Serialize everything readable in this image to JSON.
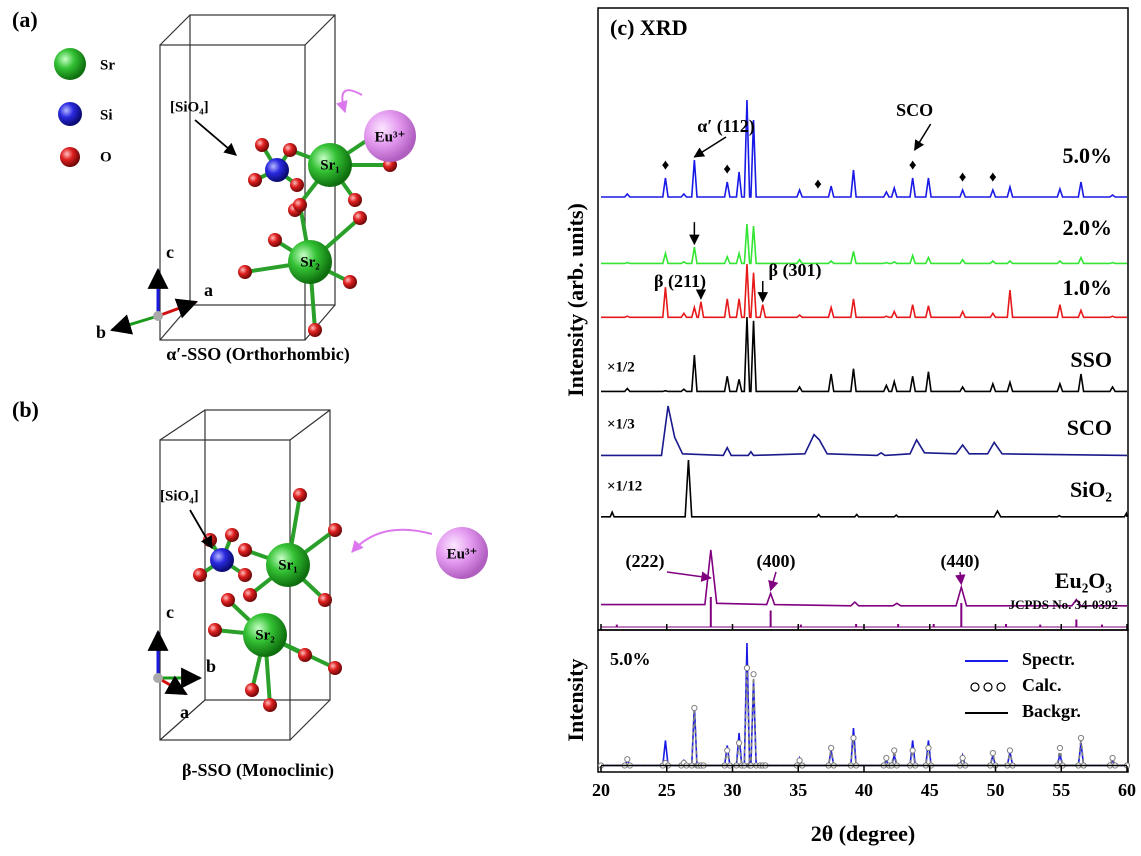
{
  "panels": [
    {
      "label": "(a)",
      "legend": [
        "Sr",
        "Si",
        "O"
      ],
      "group": "[SiO₄]",
      "dopant": "Eu³⁺",
      "atoms": [
        "Sr₁",
        "Sr₂"
      ],
      "axes": [
        "c",
        "b",
        "a"
      ],
      "caption": "α′-SSO (Orthorhombic)"
    },
    {
      "label": "(b)",
      "group": "[SiO₄]",
      "dopant": "Eu³⁺",
      "atoms": [
        "Sr₁",
        "Sr₂"
      ],
      "axes": [
        "c",
        "b",
        "a"
      ],
      "caption": "β-SSO (Monoclinic)"
    }
  ],
  "chart_data": [
    {
      "type": "line",
      "title": "(c) XRD",
      "y_label": "Intensity (arb. units)",
      "xlim": [
        20,
        60
      ],
      "x": [
        20,
        21.8,
        22,
        22.2,
        24.7,
        24.9,
        25.1,
        26.1,
        26.3,
        26.5,
        26.9,
        27.1,
        27.3,
        27.4,
        27.6,
        27.8,
        29.4,
        29.6,
        29.8,
        30.3,
        30.5,
        30.7,
        30.9,
        31.1,
        31.3,
        31.4,
        31.6,
        31.8,
        32.1,
        32.3,
        32.5,
        34.9,
        35.1,
        35.3,
        37.3,
        37.5,
        37.7,
        39,
        39.2,
        39.4,
        41.5,
        41.7,
        41.9,
        42.1,
        42.3,
        42.5,
        43.5,
        43.7,
        43.9,
        44.7,
        44.9,
        45.1,
        47.3,
        47.5,
        47.7,
        49.6,
        49.8,
        50,
        50.9,
        51.1,
        51.3,
        54.7,
        54.9,
        55.1,
        56.3,
        56.5,
        56.7,
        58.7,
        58.9,
        59.1,
        60
      ],
      "series": [
        {
          "name": "5.0%",
          "color": "#1a1ae6",
          "values": [
            3,
            3,
            6,
            3,
            3,
            22,
            3,
            3,
            6,
            3,
            3,
            40,
            3,
            3,
            3,
            3,
            3,
            18,
            3,
            3,
            28,
            3,
            3,
            100,
            3,
            3,
            80,
            3,
            3,
            3,
            3,
            3,
            10,
            3,
            3,
            14,
            3,
            3,
            30,
            3,
            3,
            8,
            3,
            3,
            12,
            3,
            3,
            22,
            3,
            3,
            22,
            3,
            3,
            10,
            3,
            3,
            10,
            3,
            3,
            13,
            3,
            3,
            11,
            3,
            3,
            18,
            3,
            3,
            5,
            3,
            3
          ]
        },
        {
          "name": "2.0%",
          "color": "#33e633",
          "values": [
            6,
            6,
            8,
            6,
            6,
            30,
            6,
            6,
            10,
            6,
            6,
            45,
            6,
            6,
            6,
            6,
            6,
            22,
            6,
            6,
            30,
            6,
            6,
            100,
            6,
            6,
            95,
            6,
            6,
            6,
            6,
            6,
            15,
            6,
            6,
            12,
            6,
            6,
            35,
            6,
            6,
            8,
            6,
            6,
            10,
            6,
            6,
            25,
            6,
            6,
            20,
            6,
            6,
            15,
            6,
            6,
            12,
            6,
            6,
            12,
            6,
            6,
            12,
            6,
            6,
            20,
            6,
            6,
            8,
            6,
            6
          ]
        },
        {
          "name": "1.0%",
          "color": "#e61a1a",
          "values": [
            8,
            8,
            10,
            8,
            8,
            60,
            8,
            8,
            15,
            8,
            8,
            25,
            8,
            8,
            35,
            8,
            8,
            40,
            8,
            8,
            40,
            8,
            8,
            100,
            8,
            8,
            85,
            8,
            8,
            30,
            8,
            8,
            12,
            8,
            8,
            25,
            8,
            8,
            40,
            8,
            8,
            10,
            8,
            8,
            18,
            8,
            8,
            30,
            8,
            8,
            28,
            8,
            8,
            18,
            8,
            8,
            15,
            8,
            8,
            55,
            8,
            8,
            30,
            8,
            8,
            20,
            8,
            8,
            10,
            8,
            8
          ]
        },
        {
          "name": "SSO",
          "color": "#000000",
          "scale_label": "×1/2",
          "values": [
            2,
            2,
            6,
            2,
            2,
            3,
            2,
            2,
            5,
            2,
            2,
            50,
            2,
            2,
            2,
            2,
            2,
            22,
            2,
            2,
            18,
            2,
            2,
            100,
            2,
            2,
            95,
            2,
            2,
            2,
            2,
            2,
            8,
            2,
            2,
            25,
            2,
            2,
            32,
            2,
            2,
            10,
            2,
            2,
            15,
            2,
            2,
            22,
            2,
            2,
            28,
            2,
            2,
            8,
            2,
            2,
            12,
            2,
            2,
            14,
            2,
            2,
            12,
            2,
            2,
            25,
            2,
            2,
            8,
            2,
            2
          ]
        },
        {
          "name": "SCO",
          "color": "#1a1a8c",
          "scale_label": "×1/3",
          "x": [
            20,
            24.6,
            25.1,
            25.6,
            26.2,
            29.3,
            29.6,
            29.9,
            31.2,
            31.4,
            31.6,
            35.5,
            36.2,
            36.6,
            37.2,
            41,
            41.3,
            41.6,
            43.5,
            44,
            44.6,
            47,
            47.5,
            48,
            49.4,
            49.9,
            50.5,
            60
          ],
          "values": [
            5,
            5,
            100,
            40,
            8,
            5,
            20,
            5,
            5,
            12,
            5,
            8,
            45,
            35,
            8,
            5,
            10,
            5,
            8,
            35,
            10,
            8,
            25,
            8,
            8,
            30,
            8,
            5
          ]
        },
        {
          "name": "SiO₂",
          "color": "#000000",
          "scale_label": "×1/12",
          "x": [
            20,
            20.7,
            20.85,
            21,
            26.4,
            26.65,
            26.9,
            36.4,
            36.55,
            36.7,
            39.3,
            39.45,
            39.6,
            42.3,
            42.45,
            42.6,
            49.9,
            50.15,
            50.4,
            54.7,
            54.85,
            55,
            59.8,
            59.95,
            60
          ],
          "values": [
            2,
            2,
            10,
            2,
            2,
            100,
            2,
            2,
            6,
            2,
            2,
            6,
            2,
            2,
            5,
            2,
            2,
            12,
            2,
            2,
            4,
            2,
            2,
            8,
            2
          ]
        },
        {
          "name": "Eu₂O₃",
          "color": "#800080",
          "x": [
            20,
            27.9,
            28.35,
            28.8,
            32.6,
            32.9,
            33.2,
            39,
            39.3,
            39.6,
            42.2,
            42.5,
            42.8,
            47,
            47.4,
            47.8,
            55.8,
            56.15,
            56.5,
            60
          ],
          "values": [
            12,
            12,
            100,
            14,
            12,
            30,
            12,
            10,
            16,
            10,
            10,
            14,
            10,
            10,
            40,
            10,
            10,
            20,
            10,
            10
          ]
        }
      ],
      "sticks": {
        "name": "JCPDS No. 34-0392",
        "color": "#800080",
        "x": [
          21.2,
          28.35,
          32.9,
          35.2,
          39.4,
          42.6,
          45.3,
          47.4,
          50.8,
          53.4,
          56.15,
          58.1
        ],
        "values": [
          8,
          100,
          55,
          8,
          10,
          10,
          10,
          80,
          10,
          8,
          25,
          8
        ]
      },
      "markers": {
        "symbol": "♦",
        "series": 0,
        "x": [
          24.9,
          29.6,
          36.5,
          43.7,
          47.5,
          49.8
        ]
      },
      "arrows": [
        {
          "series": 0,
          "x": 27.1,
          "text": "α′ (112)"
        },
        {
          "series": 1,
          "x": 27.1
        },
        {
          "series": 2,
          "x": 27.6,
          "text": "β (211)"
        },
        {
          "series": 2,
          "x": 32.3,
          "text": "β (301)"
        },
        {
          "series": 6,
          "x": 28.35,
          "text": "(222)"
        },
        {
          "series": 6,
          "x": 32.9,
          "text": "(400)"
        },
        {
          "series": 6,
          "x": 47.4,
          "text": "(440)"
        }
      ],
      "annotation": {
        "text": "SCO",
        "x": 43.7
      }
    },
    {
      "type": "line",
      "x_label": "2θ (degree)",
      "y_label": "Intensity",
      "label": "5.0%",
      "xlim": [
        20,
        60
      ],
      "xticks": [
        20,
        25,
        30,
        35,
        40,
        45,
        50,
        55,
        60
      ],
      "legend": "upper right",
      "x": [
        20,
        21.8,
        22,
        22.2,
        24.7,
        24.9,
        25.1,
        26.1,
        26.3,
        26.5,
        26.9,
        27.1,
        27.3,
        27.4,
        27.6,
        27.8,
        29.4,
        29.6,
        29.8,
        30.3,
        30.5,
        30.7,
        30.9,
        31.1,
        31.3,
        31.4,
        31.6,
        31.8,
        32.1,
        32.3,
        32.5,
        34.9,
        35.1,
        35.3,
        37.3,
        37.5,
        37.7,
        39,
        39.2,
        39.4,
        41.5,
        41.7,
        41.9,
        42.1,
        42.3,
        42.5,
        43.5,
        43.7,
        43.9,
        44.7,
        44.9,
        45.1,
        47.3,
        47.5,
        47.7,
        49.6,
        49.8,
        50,
        50.9,
        51.1,
        51.3,
        54.7,
        54.9,
        55.1,
        56.3,
        56.5,
        56.7,
        58.7,
        58.9,
        59.1,
        60
      ],
      "series": [
        {
          "name": "Spectr.",
          "color": "#1a1ae6",
          "values": [
            2,
            2,
            6,
            2,
            2,
            22,
            2,
            2,
            6,
            2,
            2,
            50,
            2,
            2,
            2,
            2,
            2,
            18,
            2,
            2,
            28,
            2,
            2,
            100,
            2,
            2,
            70,
            2,
            2,
            2,
            2,
            2,
            8,
            2,
            2,
            14,
            2,
            2,
            32,
            2,
            2,
            6,
            2,
            2,
            10,
            2,
            2,
            22,
            2,
            2,
            22,
            2,
            2,
            10,
            2,
            2,
            10,
            2,
            2,
            13,
            2,
            2,
            11,
            2,
            2,
            20,
            2,
            2,
            6,
            2,
            2
          ]
        },
        {
          "name": "Calc.",
          "color": "#808080",
          "marker": "circle",
          "linestyle": "dashed",
          "values": [
            2,
            2,
            7,
            2,
            2,
            4,
            2,
            2,
            4,
            2,
            2,
            48,
            2,
            2,
            2,
            2,
            2,
            14,
            2,
            2,
            20,
            2,
            2,
            80,
            2,
            2,
            75,
            2,
            2,
            2,
            2,
            2,
            6,
            2,
            2,
            16,
            2,
            2,
            24,
            2,
            2,
            8,
            2,
            2,
            14,
            2,
            2,
            14,
            2,
            2,
            16,
            2,
            2,
            8,
            2,
            2,
            12,
            2,
            2,
            14,
            2,
            2,
            16,
            2,
            2,
            24,
            2,
            2,
            8,
            2,
            2
          ]
        },
        {
          "name": "Backgr.",
          "color": "#000000",
          "x": [
            20,
            60
          ],
          "values": [
            2,
            2
          ]
        }
      ]
    }
  ]
}
